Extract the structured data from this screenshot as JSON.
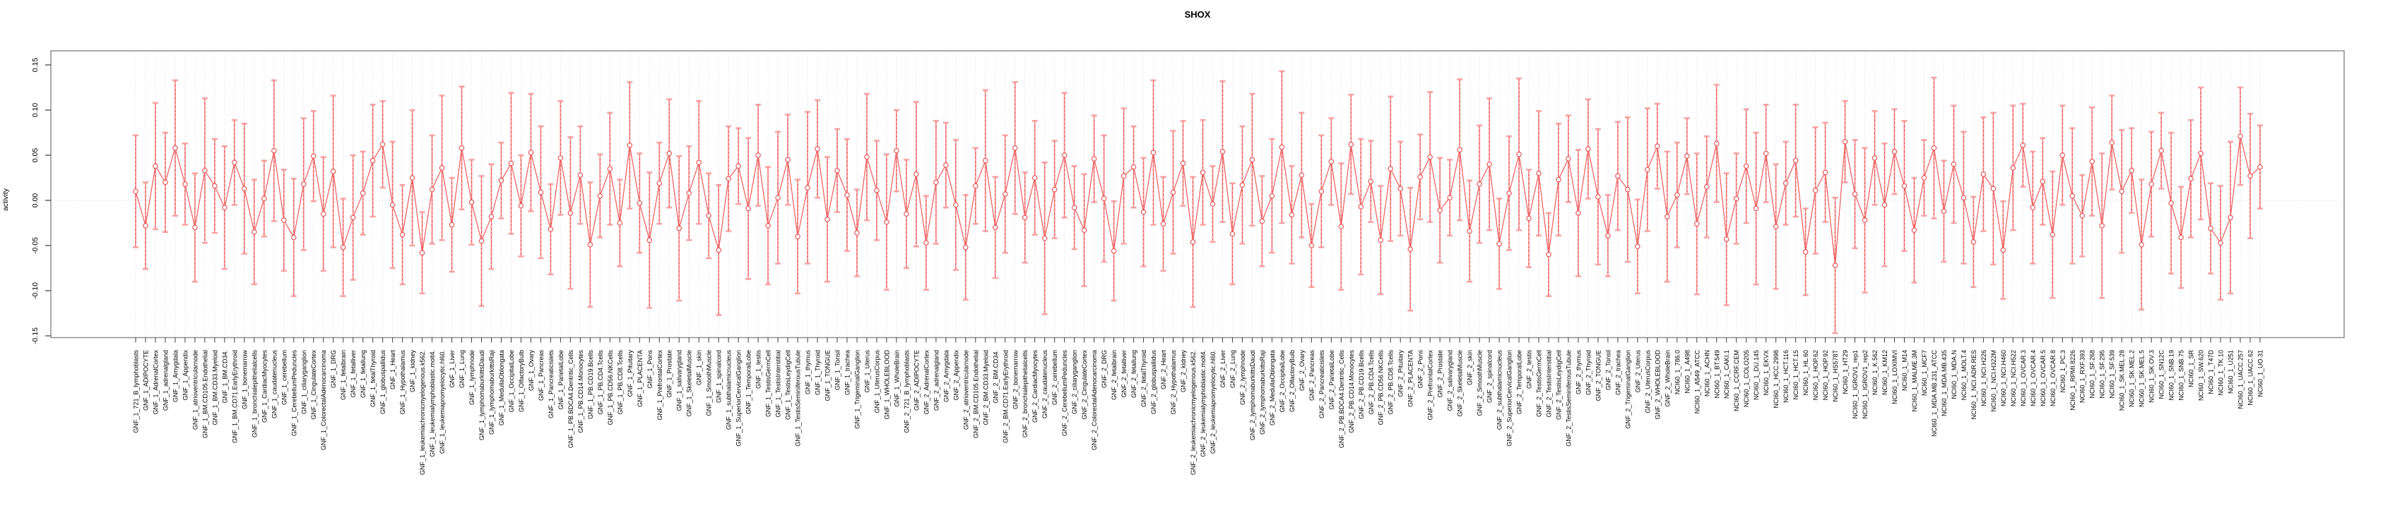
{
  "title": "SHOX",
  "chart_data": {
    "type": "line",
    "subtype": "point-estimates-with-error-bars",
    "title": "SHOX",
    "xlabel": "",
    "ylabel": "activity",
    "ylim": [
      -0.155,
      0.165
    ],
    "yticks": [
      0.15,
      0.1,
      0.05,
      0.0,
      -0.05,
      -0.1,
      -0.15
    ],
    "ytick_labels": [
      "0.15",
      "0.10",
      "0.05",
      "0.00",
      "-0.05",
      "-0.10",
      "-0.15"
    ],
    "grid": {
      "vertical_dotted_per_category": true,
      "zero_line_dotted": true,
      "legend": "none"
    },
    "colors": {
      "error_bar": "#f9a0a0",
      "error_bar_dash": "#e64c4c",
      "marker": "#e64c4c",
      "series_line": "#ee5a5a",
      "gridline": "#dedede",
      "zero_line": "#d6d6d6",
      "plot_border": "#8f8f8f",
      "tick": "#3c3c3c",
      "text": "#000000"
    },
    "categories": [
      "GNF_1_721_B_lymphoblasts",
      "GNF_1_ADIPOCYTE",
      "GNF_1_AdrenalCortex",
      "GNF_1_adrenalgland",
      "GNF_1_Amygdala",
      "GNF_1_Appendix",
      "GNF_1_atrioventricularnode",
      "GNF_1_BM.CD105.Endothelial",
      "GNF_1_BM.CD33.Myeloid",
      "GNF_1_BM.CD34.",
      "GNF_1_BM.CD71.EarlyErythroid",
      "GNF_1_bonemarrow",
      "GNF_1_bronchialepithelialcells",
      "GNF_1_CardiacMyocytes",
      "GNF_1_caudatenucleus",
      "GNF_1_cerebellum",
      "GNF_1_CerebellumPeduncles",
      "GNF_1_ciliaryganglion",
      "GNF_1_CingulateCortex",
      "GNF_1_ColorectalAdenocarcinoma",
      "GNF_1_DRG",
      "GNF_1_fetalbrain",
      "GNF_1_fetalliver",
      "GNF_1_fetallung",
      "GNF_1_fetalThyroid",
      "GNF_1_globuspallidus",
      "GNF_1_Heart",
      "GNF_1_Hypothalamus",
      "GNF_1_kidney",
      "GNF_1_leukemiachronicmyelogenous.k562.",
      "GNF_1_leukemialymphoblastic.molt4.",
      "GNF_1_leukemiapromyelocytic.hl60.",
      "GNF_1_Liver",
      "GNF_1_Lung",
      "GNF_1_lymphnode",
      "GNF_1_lymphomaburkittsDaudi",
      "GNF_1_lymphomaburkittsRaji",
      "GNF_1_MedullaOblongata",
      "GNF_1_OccipitalLobe",
      "GNF_1_OlfactoryBulb",
      "GNF_1_Ovary",
      "GNF_1_Pancreas",
      "GNF_1_Pancreaticislets",
      "GNF_1_ParietalLobe",
      "GNF_1_PB.BDCA4.Dentritic_Cells",
      "GNF_1_PB.CD14.Monocytes",
      "GNF_1_PB.CD19.Bcells",
      "GNF_1_PB.CD4.Tcells",
      "GNF_1_PB.CD56.NKCells",
      "GNF_1_PB.CD8.Tcells",
      "GNF_1_Pituitary",
      "GNF_1_PLACENTA",
      "GNF_1_Pons",
      "GNF_1_PrefrontalCortex",
      "GNF_1_Prostate",
      "GNF_1_salivarygland",
      "GNF_1_SkeletalMuscle",
      "GNF_1_skin",
      "GNF_1_SmoothMuscle",
      "GNF_1_spinalcord",
      "GNF_1_subthalamicnucleus",
      "GNF_1_SuperiorCervicalGanglion",
      "GNF_1_TemporalLobe",
      "GNF_1_testis",
      "GNF_1_TestisGermCell",
      "GNF_1_TestisInterstitial",
      "GNF_1_TestisLeydigCell",
      "GNF_1_TestisSeminiferousTubule",
      "GNF_1_thymus",
      "GNF_1_Thyroid",
      "GNF_1_TONGUE",
      "GNF_1_Tonsil",
      "GNF_1_trachea",
      "GNF_1_TrigeminalGanglion",
      "GNF_1_Uterus",
      "GNF_1_UterusCorpus",
      "GNF_1_WHOLEBLOOD",
      "GNF_1_WholeBrain",
      "GNF_2_721_B_lymphoblasts",
      "GNF_2_ADIPOCYTE",
      "GNF_2_AdrenalCortex",
      "GNF_2_adrenalgland",
      "GNF_2_Amygdala",
      "GNF_2_Appendix",
      "GNF_2_atrioventricularnode",
      "GNF_2_BM.CD105.Endothelial",
      "GNF_2_BM.CD33.Myeloid",
      "GNF_2_BM.CD34.",
      "GNF_2_BM.CD71.EarlyErythroid",
      "GNF_2_bonemarrow",
      "GNF_2_bronchialepithelialcells",
      "GNF_2_CardiacMyocytes",
      "GNF_2_caudatenucleus",
      "GNF_2_cerebellum",
      "GNF_2_CerebellumPeduncles",
      "GNF_2_ciliaryganglion",
      "GNF_2_CingulateCortex",
      "GNF_2_ColorectalAdenocarcinoma",
      "GNF_2_DRG",
      "GNF_2_fetalbrain",
      "GNF_2_fetalliver",
      "GNF_2_fetallung",
      "GNF_2_fetalThyroid",
      "GNF_2_globuspallidus",
      "GNF_2_Heart",
      "GNF_2_Hypothalamus",
      "GNF_2_kidney",
      "GNF_2_leukemiachronicmyelogenous.k562.",
      "GNF_2_leukemialymphoblastic.molt4.",
      "GNF_2_leukemiapromyelocytic.hl60.",
      "GNF_2_Liver",
      "GNF_2_Lung",
      "GNF_2_lymphnode",
      "GNF_2_lymphomaburkittsDaudi",
      "GNF_2_lymphomaburkittsRaji",
      "GNF_2_MedullaOblongata",
      "GNF_2_OccipitalLobe",
      "GNF_2_OlfactoryBulb",
      "GNF_2_Ovary",
      "GNF_2_Pancreas",
      "GNF_2_Pancreaticislets",
      "GNF_2_ParietalLobe",
      "GNF_2_PB.BDCA4.Dentritic_Cells",
      "GNF_2_PB.CD14.Monocytes",
      "GNF_2_PB.CD19.Bcells",
      "GNF_2_PB.CD4.Tcells",
      "GNF_2_PB.CD56.NKCells",
      "GNF_2_PB.CD8.Tcells",
      "GNF_2_Pituitary",
      "GNF_2_PLACENTA",
      "GNF_2_Pons",
      "GNF_2_PrefrontalCortex",
      "GNF_2_Prostate",
      "GNF_2_salivarygland",
      "GNF_2_SkeletalMuscle",
      "GNF_2_skin",
      "GNF_2_SmoothMuscle",
      "GNF_2_spinalcord",
      "GNF_2_subthalamicnucleus",
      "GNF_2_SuperiorCervicalGanglion",
      "GNF_2_TemporalLobe",
      "GNF_2_testis",
      "GNF_2_TestisGermCell",
      "GNF_2_TestisInterstitial",
      "GNF_2_TestisLeydigCell",
      "GNF_2_TestisSeminiferousTubule",
      "GNF_2_thymus",
      "GNF_2_Thyroid",
      "GNF_2_TONGUE",
      "GNF_2_Tonsil",
      "GNF_2_trachea",
      "GNF_2_TrigeminalGanglion",
      "GNF_2_Uterus",
      "GNF_2_UterusCorpus",
      "GNF_2_WHOLEBLOOD",
      "GNF_2_WholeBrain",
      "NCI60_1_786.0",
      "NCI60_1_A498",
      "NCI60_1_A549_ATCC",
      "NCI60_1_ACHN",
      "NCI60_1_BT.549",
      "NCI60_1_CAKI.1",
      "NCI60_1_CCRF.CEM",
      "NCI60_1_COLO205",
      "NCI60_1_DU.145",
      "NCI60_1_EKVX",
      "NCI60_1_HCC.2998",
      "NCI60_1_HCT.116",
      "NCI60_1_HCT.15",
      "NCI60_1_HL.60",
      "NCI60_1_HOP.62",
      "NCI60_1_HOP.92",
      "NCI60_1_HS578T",
      "NCI60_1_HT29",
      "NCI60_1_IGROV1_rep1",
      "NCI60_1_IGROV1_rep2",
      "NCI60_1_K.562",
      "NCI60_1_KM12",
      "NCI60_1_LOXIMVI",
      "NCI60_1_M14",
      "NCI60_1_MALME.3M",
      "NCI60_1_MCF7",
      "NCI60_1_MDA.MB.231_ATCC",
      "NCI60_1_MDA.MB.435",
      "NCI60_1_MDA.N",
      "NCI60_1_MOLT.4",
      "NCI60_1_NCI.ADR.RES",
      "NCI60_1_NCI.H226",
      "NCI60_1_NCI.H322M",
      "NCI60_1_NCI.H460",
      "NCI60_1_NCI.H522",
      "NCI60_1_OVCAR.3",
      "NCI60_1_OVCAR.4",
      "NCI60_1_OVCAR.5",
      "NCI60_1_OVCAR.8",
      "NCI60_1_PC.3",
      "NCI60_1_RPMI.8226",
      "NCI60_1_RXF.393",
      "NCI60_1_SF.268",
      "NCI60_1_SF.295",
      "NCI60_1_SF.539",
      "NCI60_1_SK.MEL.28",
      "NCI60_1_SK.MEL.2",
      "NCI60_1_SK.MEL.5",
      "NCI60_1_SK.OV.3",
      "NCI60_1_SN12C",
      "NCI60_1_SNB.19",
      "NCI60_1_SNB.75",
      "NCI60_1_SR",
      "NCI60_1_SW.620",
      "NCI60_1_T47D",
      "NCI60_1_TK.10",
      "NCI60_1_U251",
      "NCI60_1_UACC.257",
      "NCI60_1_UACC.62",
      "NCI60_1_UO.31"
    ],
    "values": [
      0.01,
      -0.028,
      0.038,
      0.02,
      0.058,
      0.018,
      -0.03,
      0.033,
      0.016,
      -0.008,
      0.042,
      0.013,
      -0.035,
      0.002,
      0.055,
      -0.022,
      -0.041,
      0.018,
      0.049,
      -0.015,
      0.032,
      -0.052,
      -0.019,
      0.008,
      0.044,
      0.062,
      -0.005,
      -0.038,
      0.025,
      -0.058,
      0.012,
      0.036,
      -0.027,
      0.058,
      -0.002,
      -0.045,
      -0.018,
      0.022,
      0.041,
      -0.006,
      0.053,
      0.009,
      -0.032,
      0.047,
      -0.014,
      0.028,
      -0.049,
      0.005,
      0.035,
      -0.025,
      0.061,
      -0.003,
      -0.044,
      0.019,
      0.052,
      -0.031,
      0.008,
      0.042,
      -0.017,
      -0.055,
      0.024,
      0.038,
      -0.009,
      0.05,
      -0.028,
      0.003,
      0.045,
      -0.04,
      0.014,
      0.057,
      -0.021,
      0.033,
      0.006,
      -0.036,
      0.048,
      0.011,
      -0.024,
      0.055,
      -0.015,
      0.029,
      -0.047,
      0.02,
      0.039,
      -0.005,
      -0.052,
      0.016,
      0.044,
      -0.03,
      0.007,
      0.058,
      -0.019,
      0.025,
      -0.042,
      0.012,
      0.05,
      -0.008,
      -0.033,
      0.046,
      0.002,
      -0.056,
      0.027,
      0.037,
      -0.013,
      0.053,
      -0.026,
      0.009,
      0.041,
      -0.046,
      0.031,
      -0.004,
      0.054,
      -0.037,
      0.017,
      0.045,
      -0.023,
      0.005,
      0.059,
      -0.016,
      0.028,
      -0.05,
      0.01,
      0.043,
      -0.029,
      0.062,
      -0.007,
      0.021,
      -0.044,
      0.035,
      0.013,
      -0.054,
      0.026,
      0.048,
      -0.011,
      0.003,
      0.056,
      -0.034,
      0.018,
      0.04,
      -0.048,
      0.008,
      0.051,
      -0.02,
      0.03,
      -0.06,
      0.023,
      0.046,
      -0.014,
      0.057,
      0.004,
      -0.039,
      0.027,
      0.012,
      -0.051,
      0.034,
      0.06,
      -0.018,
      0.006,
      0.049,
      -0.026,
      0.015,
      0.063,
      -0.043,
      0.002,
      0.038,
      -0.009,
      0.052,
      -0.029,
      0.019,
      0.044,
      -0.057,
      0.011,
      0.031,
      -0.072,
      0.065,
      0.007,
      -0.022,
      0.047,
      -0.005,
      0.054,
      0.016,
      -0.033,
      0.025,
      0.058,
      -0.012,
      0.04,
      0.003,
      -0.046,
      0.029,
      0.013,
      -0.055,
      0.036,
      0.061,
      -0.008,
      0.021,
      -0.038,
      0.05,
      0.005,
      -0.017,
      0.043,
      -0.028,
      0.064,
      0.01,
      0.033,
      -0.049,
      0.018,
      0.055,
      -0.003,
      -0.041,
      0.024,
      0.052,
      -0.031,
      -0.047,
      -0.019,
      0.071,
      0.027,
      0.037
    ],
    "ci_half_widths": [
      0.062,
      0.048,
      0.07,
      0.055,
      0.075,
      0.045,
      0.06,
      0.08,
      0.052,
      0.068,
      0.047,
      0.072,
      0.058,
      0.042,
      0.078,
      0.056,
      0.065,
      0.073,
      0.05,
      0.063,
      0.084,
      0.054,
      0.069,
      0.046,
      0.062,
      0.048,
      0.07,
      0.055,
      0.075,
      0.045,
      0.06,
      0.08,
      0.052,
      0.068,
      0.047,
      0.072,
      0.058,
      0.042,
      0.078,
      0.056,
      0.065,
      0.073,
      0.05,
      0.063,
      0.084,
      0.054,
      0.069,
      0.046,
      0.062,
      0.048,
      0.07,
      0.055,
      0.075,
      0.045,
      0.06,
      0.08,
      0.052,
      0.068,
      0.047,
      0.072,
      0.058,
      0.042,
      0.078,
      0.056,
      0.065,
      0.073,
      0.05,
      0.063,
      0.084,
      0.054,
      0.069,
      0.046,
      0.062,
      0.048,
      0.07,
      0.055,
      0.075,
      0.045,
      0.06,
      0.08,
      0.052,
      0.068,
      0.047,
      0.072,
      0.058,
      0.042,
      0.078,
      0.056,
      0.065,
      0.073,
      0.05,
      0.063,
      0.084,
      0.054,
      0.069,
      0.046,
      0.062,
      0.048,
      0.07,
      0.055,
      0.075,
      0.045,
      0.06,
      0.08,
      0.052,
      0.068,
      0.047,
      0.072,
      0.058,
      0.042,
      0.078,
      0.056,
      0.065,
      0.073,
      0.05,
      0.063,
      0.084,
      0.054,
      0.069,
      0.046,
      0.062,
      0.048,
      0.07,
      0.055,
      0.075,
      0.045,
      0.06,
      0.08,
      0.052,
      0.068,
      0.047,
      0.072,
      0.058,
      0.042,
      0.078,
      0.056,
      0.065,
      0.073,
      0.05,
      0.063,
      0.084,
      0.054,
      0.069,
      0.046,
      0.062,
      0.048,
      0.07,
      0.055,
      0.075,
      0.045,
      0.06,
      0.08,
      0.052,
      0.068,
      0.047,
      0.072,
      0.058,
      0.042,
      0.078,
      0.056,
      0.065,
      0.073,
      0.05,
      0.063,
      0.084,
      0.054,
      0.069,
      0.046,
      0.062,
      0.048,
      0.07,
      0.055,
      0.075,
      0.045,
      0.06,
      0.08,
      0.052,
      0.068,
      0.047,
      0.072,
      0.058,
      0.042,
      0.078,
      0.056,
      0.065,
      0.073,
      0.05,
      0.063,
      0.084,
      0.054,
      0.069,
      0.046,
      0.062,
      0.048,
      0.07,
      0.055,
      0.075,
      0.045,
      0.06,
      0.08,
      0.052,
      0.068,
      0.047,
      0.072,
      0.058,
      0.042,
      0.078,
      0.056,
      0.065,
      0.073,
      0.05,
      0.063,
      0.084,
      0.054,
      0.069,
      0.046
    ]
  }
}
